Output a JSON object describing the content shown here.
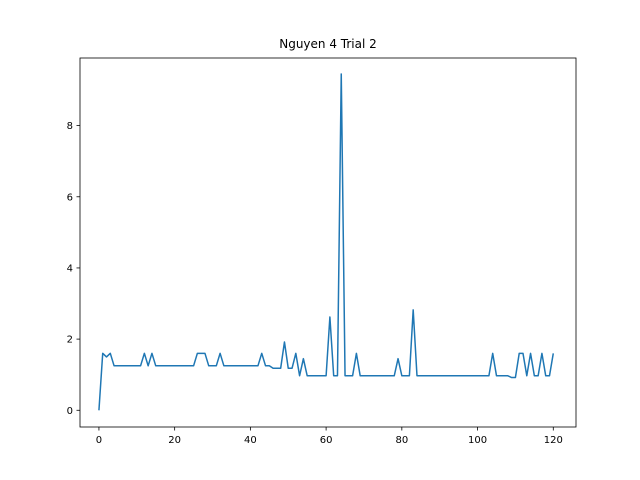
{
  "chart_data": {
    "type": "line",
    "title": "Nguyen 4 Trial 2",
    "xlabel": "",
    "ylabel": "",
    "xlim": [
      -5,
      126
    ],
    "ylim": [
      -0.47,
      9.9
    ],
    "xticks": [
      0,
      20,
      40,
      60,
      80,
      100,
      120
    ],
    "yticks": [
      0,
      2,
      4,
      6,
      8
    ],
    "grid": false,
    "line_color": "#1f77b4",
    "series": [
      {
        "x": [
          0,
          1,
          2,
          3,
          4,
          5,
          6,
          7,
          8,
          9,
          10,
          11,
          12,
          13,
          14,
          15,
          16,
          17,
          18,
          19,
          20,
          21,
          22,
          23,
          24,
          25,
          26,
          27,
          28,
          29,
          30,
          31,
          32,
          33,
          34,
          35,
          36,
          37,
          38,
          39,
          40,
          41,
          42,
          43,
          44,
          45,
          46,
          47,
          48,
          49,
          50,
          51,
          52,
          53,
          54,
          55,
          56,
          57,
          58,
          59,
          60,
          61,
          62,
          63,
          64,
          65,
          66,
          67,
          68,
          69,
          70,
          71,
          72,
          73,
          74,
          75,
          76,
          77,
          78,
          79,
          80,
          81,
          82,
          83,
          84,
          85,
          86,
          87,
          88,
          89,
          90,
          91,
          92,
          93,
          94,
          95,
          96,
          97,
          98,
          99,
          100,
          101,
          102,
          103,
          104,
          105,
          106,
          107,
          108,
          109,
          110,
          111,
          112,
          113,
          114,
          115,
          116,
          117,
          118,
          119,
          120
        ],
        "values": [
          0,
          1.6,
          1.5,
          1.6,
          1.25,
          1.25,
          1.25,
          1.25,
          1.25,
          1.25,
          1.25,
          1.25,
          1.6,
          1.25,
          1.6,
          1.25,
          1.25,
          1.25,
          1.25,
          1.25,
          1.25,
          1.25,
          1.25,
          1.25,
          1.25,
          1.25,
          1.6,
          1.6,
          1.6,
          1.25,
          1.25,
          1.25,
          1.6,
          1.25,
          1.25,
          1.25,
          1.25,
          1.25,
          1.25,
          1.25,
          1.25,
          1.25,
          1.25,
          1.6,
          1.25,
          1.25,
          1.18,
          1.18,
          1.18,
          1.92,
          1.18,
          1.18,
          1.6,
          0.97,
          1.45,
          0.97,
          0.97,
          0.97,
          0.97,
          0.97,
          0.97,
          2.62,
          0.97,
          0.97,
          9.45,
          0.97,
          0.97,
          0.97,
          1.6,
          0.97,
          0.97,
          0.97,
          0.97,
          0.97,
          0.97,
          0.97,
          0.97,
          0.97,
          0.97,
          1.45,
          0.97,
          0.97,
          0.97,
          2.82,
          0.97,
          0.97,
          0.97,
          0.97,
          0.97,
          0.97,
          0.97,
          0.97,
          0.97,
          0.97,
          0.97,
          0.97,
          0.97,
          0.97,
          0.97,
          0.97,
          0.97,
          0.97,
          0.97,
          0.97,
          1.6,
          0.97,
          0.97,
          0.97,
          0.97,
          0.92,
          0.92,
          1.6,
          1.6,
          0.97,
          1.6,
          0.97,
          0.97,
          1.6,
          0.97,
          0.97,
          1.6
        ]
      }
    ]
  }
}
